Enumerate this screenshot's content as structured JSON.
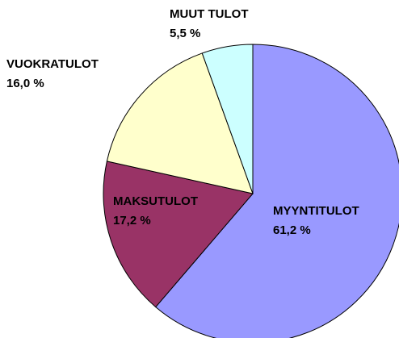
{
  "chart_data": {
    "type": "pie",
    "categories": [
      "MYYNTITULOT",
      "MAKSUTULOT",
      "VUOKRATULOT",
      "MUUT TULOT"
    ],
    "values": [
      61.2,
      17.2,
      16.0,
      5.5
    ],
    "value_labels": [
      "61,2 %",
      "17,2 %",
      "16,0 %",
      "5,5 %"
    ],
    "colors": [
      "#9999ff",
      "#993366",
      "#ffffcc",
      "#ccffff"
    ]
  }
}
